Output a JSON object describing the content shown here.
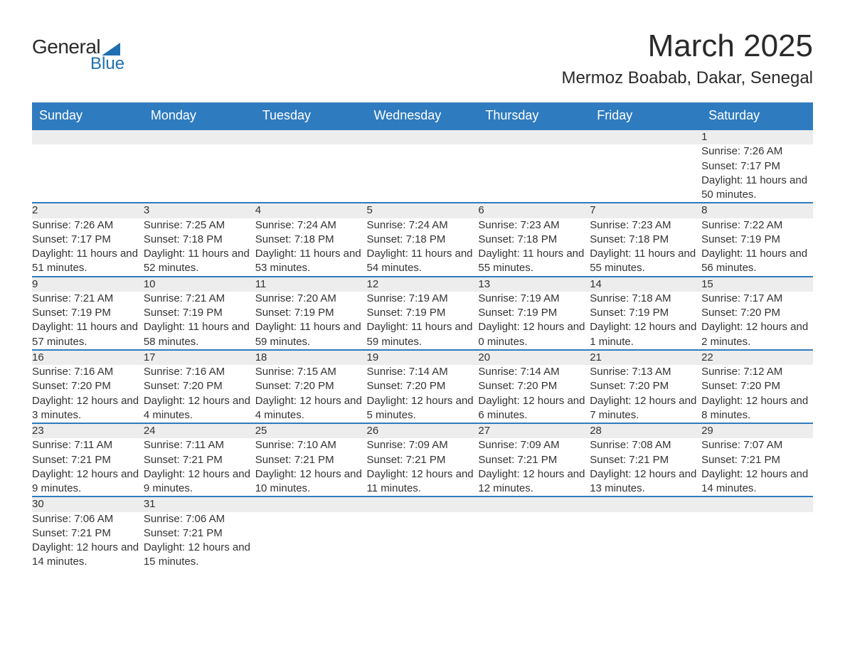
{
  "logo": {
    "text1": "General",
    "text2": "Blue",
    "shape_color": "#1f6fb2"
  },
  "title": "March 2025",
  "location": "Mermoz Boabab, Dakar, Senegal",
  "colors": {
    "header_bg": "#2f7bbf",
    "header_text": "#ffffff",
    "daynum_bg": "#ededed",
    "row_border": "#2f7bbf",
    "body_text": "#333333"
  },
  "fonts": {
    "title_size": 44,
    "location_size": 24,
    "th_size": 18,
    "daynum_size": 18,
    "cell_size": 15
  },
  "weekdays": [
    "Sunday",
    "Monday",
    "Tuesday",
    "Wednesday",
    "Thursday",
    "Friday",
    "Saturday"
  ],
  "weeks": [
    [
      null,
      null,
      null,
      null,
      null,
      null,
      {
        "day": "1",
        "sunrise": "Sunrise: 7:26 AM",
        "sunset": "Sunset: 7:17 PM",
        "daylight": "Daylight: 11 hours and 50 minutes."
      }
    ],
    [
      {
        "day": "2",
        "sunrise": "Sunrise: 7:26 AM",
        "sunset": "Sunset: 7:17 PM",
        "daylight": "Daylight: 11 hours and 51 minutes."
      },
      {
        "day": "3",
        "sunrise": "Sunrise: 7:25 AM",
        "sunset": "Sunset: 7:18 PM",
        "daylight": "Daylight: 11 hours and 52 minutes."
      },
      {
        "day": "4",
        "sunrise": "Sunrise: 7:24 AM",
        "sunset": "Sunset: 7:18 PM",
        "daylight": "Daylight: 11 hours and 53 minutes."
      },
      {
        "day": "5",
        "sunrise": "Sunrise: 7:24 AM",
        "sunset": "Sunset: 7:18 PM",
        "daylight": "Daylight: 11 hours and 54 minutes."
      },
      {
        "day": "6",
        "sunrise": "Sunrise: 7:23 AM",
        "sunset": "Sunset: 7:18 PM",
        "daylight": "Daylight: 11 hours and 55 minutes."
      },
      {
        "day": "7",
        "sunrise": "Sunrise: 7:23 AM",
        "sunset": "Sunset: 7:18 PM",
        "daylight": "Daylight: 11 hours and 55 minutes."
      },
      {
        "day": "8",
        "sunrise": "Sunrise: 7:22 AM",
        "sunset": "Sunset: 7:19 PM",
        "daylight": "Daylight: 11 hours and 56 minutes."
      }
    ],
    [
      {
        "day": "9",
        "sunrise": "Sunrise: 7:21 AM",
        "sunset": "Sunset: 7:19 PM",
        "daylight": "Daylight: 11 hours and 57 minutes."
      },
      {
        "day": "10",
        "sunrise": "Sunrise: 7:21 AM",
        "sunset": "Sunset: 7:19 PM",
        "daylight": "Daylight: 11 hours and 58 minutes."
      },
      {
        "day": "11",
        "sunrise": "Sunrise: 7:20 AM",
        "sunset": "Sunset: 7:19 PM",
        "daylight": "Daylight: 11 hours and 59 minutes."
      },
      {
        "day": "12",
        "sunrise": "Sunrise: 7:19 AM",
        "sunset": "Sunset: 7:19 PM",
        "daylight": "Daylight: 11 hours and 59 minutes."
      },
      {
        "day": "13",
        "sunrise": "Sunrise: 7:19 AM",
        "sunset": "Sunset: 7:19 PM",
        "daylight": "Daylight: 12 hours and 0 minutes."
      },
      {
        "day": "14",
        "sunrise": "Sunrise: 7:18 AM",
        "sunset": "Sunset: 7:19 PM",
        "daylight": "Daylight: 12 hours and 1 minute."
      },
      {
        "day": "15",
        "sunrise": "Sunrise: 7:17 AM",
        "sunset": "Sunset: 7:20 PM",
        "daylight": "Daylight: 12 hours and 2 minutes."
      }
    ],
    [
      {
        "day": "16",
        "sunrise": "Sunrise: 7:16 AM",
        "sunset": "Sunset: 7:20 PM",
        "daylight": "Daylight: 12 hours and 3 minutes."
      },
      {
        "day": "17",
        "sunrise": "Sunrise: 7:16 AM",
        "sunset": "Sunset: 7:20 PM",
        "daylight": "Daylight: 12 hours and 4 minutes."
      },
      {
        "day": "18",
        "sunrise": "Sunrise: 7:15 AM",
        "sunset": "Sunset: 7:20 PM",
        "daylight": "Daylight: 12 hours and 4 minutes."
      },
      {
        "day": "19",
        "sunrise": "Sunrise: 7:14 AM",
        "sunset": "Sunset: 7:20 PM",
        "daylight": "Daylight: 12 hours and 5 minutes."
      },
      {
        "day": "20",
        "sunrise": "Sunrise: 7:14 AM",
        "sunset": "Sunset: 7:20 PM",
        "daylight": "Daylight: 12 hours and 6 minutes."
      },
      {
        "day": "21",
        "sunrise": "Sunrise: 7:13 AM",
        "sunset": "Sunset: 7:20 PM",
        "daylight": "Daylight: 12 hours and 7 minutes."
      },
      {
        "day": "22",
        "sunrise": "Sunrise: 7:12 AM",
        "sunset": "Sunset: 7:20 PM",
        "daylight": "Daylight: 12 hours and 8 minutes."
      }
    ],
    [
      {
        "day": "23",
        "sunrise": "Sunrise: 7:11 AM",
        "sunset": "Sunset: 7:21 PM",
        "daylight": "Daylight: 12 hours and 9 minutes."
      },
      {
        "day": "24",
        "sunrise": "Sunrise: 7:11 AM",
        "sunset": "Sunset: 7:21 PM",
        "daylight": "Daylight: 12 hours and 9 minutes."
      },
      {
        "day": "25",
        "sunrise": "Sunrise: 7:10 AM",
        "sunset": "Sunset: 7:21 PM",
        "daylight": "Daylight: 12 hours and 10 minutes."
      },
      {
        "day": "26",
        "sunrise": "Sunrise: 7:09 AM",
        "sunset": "Sunset: 7:21 PM",
        "daylight": "Daylight: 12 hours and 11 minutes."
      },
      {
        "day": "27",
        "sunrise": "Sunrise: 7:09 AM",
        "sunset": "Sunset: 7:21 PM",
        "daylight": "Daylight: 12 hours and 12 minutes."
      },
      {
        "day": "28",
        "sunrise": "Sunrise: 7:08 AM",
        "sunset": "Sunset: 7:21 PM",
        "daylight": "Daylight: 12 hours and 13 minutes."
      },
      {
        "day": "29",
        "sunrise": "Sunrise: 7:07 AM",
        "sunset": "Sunset: 7:21 PM",
        "daylight": "Daylight: 12 hours and 14 minutes."
      }
    ],
    [
      {
        "day": "30",
        "sunrise": "Sunrise: 7:06 AM",
        "sunset": "Sunset: 7:21 PM",
        "daylight": "Daylight: 12 hours and 14 minutes."
      },
      {
        "day": "31",
        "sunrise": "Sunrise: 7:06 AM",
        "sunset": "Sunset: 7:21 PM",
        "daylight": "Daylight: 12 hours and 15 minutes."
      },
      null,
      null,
      null,
      null,
      null
    ]
  ]
}
